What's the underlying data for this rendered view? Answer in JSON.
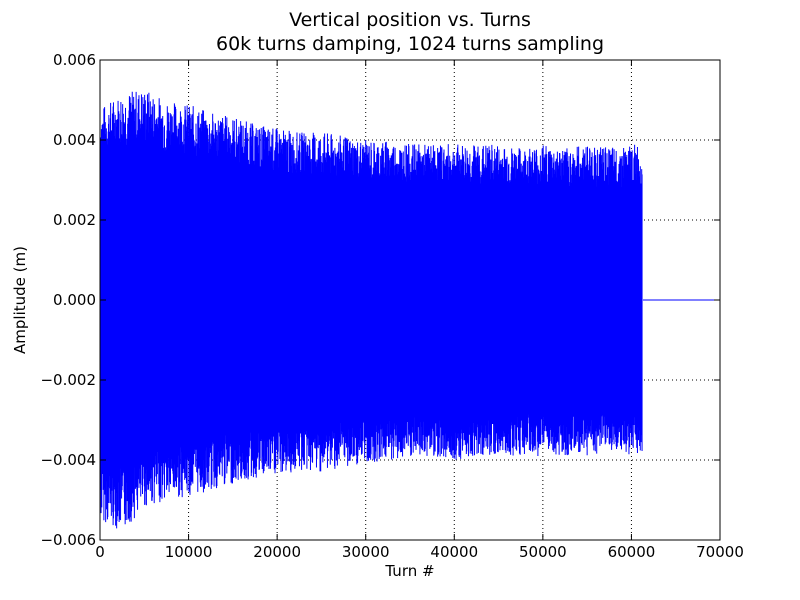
{
  "chart_data": {
    "type": "line",
    "title": "Vertical position vs. Turns",
    "subtitle": "60k turns damping, 1024 turns sampling",
    "xlabel": "Turn #",
    "ylabel": "Amplitude (m)",
    "xlim": [
      0,
      70000
    ],
    "ylim": [
      -0.006,
      0.006
    ],
    "x_ticks": [
      0,
      10000,
      20000,
      30000,
      40000,
      50000,
      60000,
      70000
    ],
    "x_tick_labels": [
      "0",
      "10000",
      "20000",
      "30000",
      "40000",
      "50000",
      "60000",
      "70000"
    ],
    "y_ticks": [
      -0.006,
      -0.004,
      -0.002,
      0.0,
      0.002,
      0.004,
      0.006
    ],
    "y_tick_labels": [
      "−0.006",
      "−0.004",
      "−0.002",
      "0.000",
      "0.002",
      "0.004",
      "0.006"
    ],
    "grid": true,
    "grid_style": "dotted",
    "line_color": "#0000ff",
    "series": [
      {
        "x": [
          0,
          2500,
          5000,
          7500,
          10000,
          12500,
          15000,
          17500,
          20000,
          22500,
          25000,
          27500,
          30000,
          32500,
          35000,
          37500,
          40000,
          42500,
          45000,
          47500,
          50000,
          52500,
          55000,
          57500,
          60000,
          61200,
          61300,
          70000
        ],
        "upper_envelope": [
          0.0048,
          0.0052,
          0.0053,
          0.005,
          0.0049,
          0.0047,
          0.0046,
          0.0044,
          0.0043,
          0.0042,
          0.0042,
          0.0041,
          0.004,
          0.004,
          0.0039,
          0.0039,
          0.0039,
          0.0039,
          0.0039,
          0.0038,
          0.0039,
          0.0038,
          0.0039,
          0.0038,
          0.0039,
          0.0039,
          0.0,
          0.0
        ],
        "lower_envelope": [
          -0.0055,
          -0.0058,
          -0.0052,
          -0.005,
          -0.0049,
          -0.0048,
          -0.0046,
          -0.0045,
          -0.0044,
          -0.0043,
          -0.0043,
          -0.0042,
          -0.0041,
          -0.004,
          -0.004,
          -0.0039,
          -0.004,
          -0.0039,
          -0.0039,
          -0.0039,
          -0.0039,
          -0.0039,
          -0.0039,
          -0.0038,
          -0.0039,
          -0.0038,
          0.0,
          0.0
        ]
      }
    ]
  }
}
